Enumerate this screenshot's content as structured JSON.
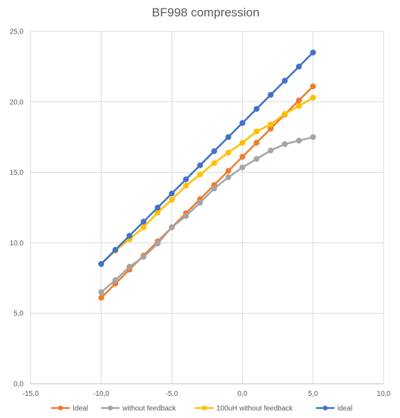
{
  "chart_data": {
    "type": "line",
    "title": "BF998 compression",
    "xlabel": "",
    "ylabel": "",
    "xlim": [
      -15,
      10
    ],
    "ylim": [
      0,
      25
    ],
    "x_ticks": [
      "-15,0",
      "-10,0",
      "-5,0",
      "0,0",
      "5,0",
      "10,0"
    ],
    "x_tick_values": [
      -15,
      -10,
      -5,
      0,
      5,
      10
    ],
    "y_ticks": [
      "0,0",
      "5,0",
      "10,0",
      "15,0",
      "20,0",
      "25,0"
    ],
    "y_tick_values": [
      0,
      5,
      10,
      15,
      20,
      25
    ],
    "grid": "vertical and horizontal",
    "legend_position": "bottom",
    "x": [
      -10,
      -9,
      -8,
      -7,
      -6,
      -5,
      -4,
      -3,
      -2,
      -1,
      0,
      1,
      2,
      3,
      4,
      5
    ],
    "series": [
      {
        "name": "Ideal",
        "color": "#ed7d31",
        "values": [
          6.1,
          7.1,
          8.1,
          9.1,
          10.1,
          11.1,
          12.1,
          13.1,
          14.1,
          15.1,
          16.1,
          17.1,
          18.1,
          19.1,
          20.1,
          21.1
        ]
      },
      {
        "name": "without feedback",
        "color": "#a5a5a5",
        "values": [
          6.5,
          7.35,
          8.3,
          9.0,
          9.95,
          11.1,
          11.9,
          12.85,
          13.85,
          14.65,
          15.35,
          15.95,
          16.55,
          17.0,
          17.25,
          17.5
        ]
      },
      {
        "name": "100uH without feedback",
        "color": "#ffc000",
        "values": [
          8.5,
          9.45,
          10.25,
          11.1,
          12.15,
          13.05,
          14.05,
          14.85,
          15.65,
          16.4,
          17.1,
          17.9,
          18.4,
          19.15,
          19.7,
          20.3
        ]
      },
      {
        "name": "ideal",
        "color": "#4472c4",
        "values": [
          8.5,
          9.5,
          10.5,
          11.5,
          12.5,
          13.5,
          14.5,
          15.5,
          16.5,
          17.5,
          18.5,
          19.5,
          20.5,
          21.5,
          22.5,
          23.5
        ]
      }
    ]
  }
}
